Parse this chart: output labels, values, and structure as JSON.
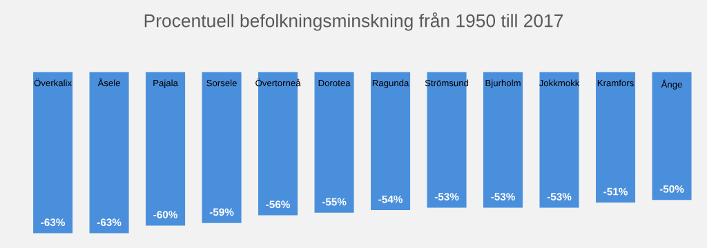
{
  "chart_data": {
    "type": "bar",
    "title": "Procentuell befolkningsminskning från 1950 till 2017",
    "categories": [
      "Överkalix",
      "Åsele",
      "Pajala",
      "Sorsele",
      "Övertorneå",
      "Dorotea",
      "Ragunda",
      "Strömsund",
      "Bjurholm",
      "Jokkmokk",
      "Kramfors",
      "Ånge"
    ],
    "values": [
      -63,
      -63,
      -60,
      -59,
      -56,
      -55,
      -54,
      -53,
      -53,
      -53,
      -51,
      -50
    ],
    "value_labels": [
      "-63%",
      "-63%",
      "-60%",
      "-59%",
      "-56%",
      "-55%",
      "-54%",
      "-53%",
      "-53%",
      "-53%",
      "-51%",
      "-50%"
    ],
    "color": "#4a8fdc"
  }
}
